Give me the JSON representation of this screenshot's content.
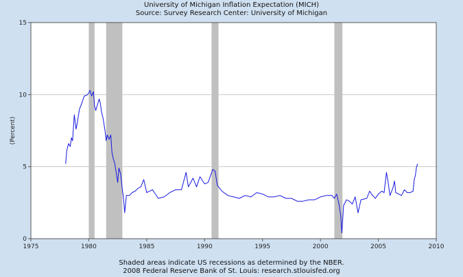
{
  "header": {
    "title": "University of Michigan Inflation Expectation (MICH)",
    "source": "Source: Survey Research Center: University of Michigan"
  },
  "footer": {
    "note": "Shaded areas indicate US recessions as determined by the NBER.",
    "credit": "2008 Federal Reserve Bank of St. Louis: research.stlouisfed.org"
  },
  "colors": {
    "line": "#1515e0",
    "recession": "#c0c0c0",
    "grid": "#c8c8c8",
    "plot_bg": "#ffffff",
    "page_bg": "#cfe0f1"
  },
  "chart_data": {
    "type": "line",
    "title": "University of Michigan Inflation Expectation (MICH)",
    "subtitle": "Source: Survey Research Center: University of Michigan",
    "xlabel": "",
    "ylabel": "(Percent)",
    "xlim": [
      1975,
      2010
    ],
    "ylim": [
      0,
      15
    ],
    "x_ticks": [
      1975,
      1980,
      1985,
      1990,
      1995,
      2000,
      2005,
      2010
    ],
    "y_ticks": [
      0,
      5,
      10,
      15
    ],
    "grid": "horizontal",
    "recessions": [
      [
        1980.0,
        1980.5
      ],
      [
        1981.5,
        1982.9
      ],
      [
        1990.6,
        1991.2
      ],
      [
        2001.2,
        2001.9
      ]
    ],
    "series": [
      {
        "points": [
          [
            1978.0,
            5.2
          ],
          [
            1978.1,
            6.1
          ],
          [
            1978.25,
            6.6
          ],
          [
            1978.4,
            6.4
          ],
          [
            1978.5,
            7.0
          ],
          [
            1978.6,
            6.8
          ],
          [
            1978.75,
            8.6
          ],
          [
            1978.9,
            7.6
          ],
          [
            1979.0,
            8.0
          ],
          [
            1979.2,
            9.0
          ],
          [
            1979.4,
            9.4
          ],
          [
            1979.6,
            9.9
          ],
          [
            1979.8,
            9.95
          ],
          [
            1980.0,
            10.1
          ],
          [
            1980.1,
            10.3
          ],
          [
            1980.25,
            9.9
          ],
          [
            1980.4,
            10.2
          ],
          [
            1980.5,
            9.2
          ],
          [
            1980.6,
            8.9
          ],
          [
            1980.75,
            9.3
          ],
          [
            1980.9,
            9.7
          ],
          [
            1981.0,
            9.4
          ],
          [
            1981.1,
            8.8
          ],
          [
            1981.25,
            8.3
          ],
          [
            1981.4,
            7.5
          ],
          [
            1981.5,
            6.8
          ],
          [
            1981.6,
            7.2
          ],
          [
            1981.75,
            6.9
          ],
          [
            1981.9,
            7.2
          ],
          [
            1982.0,
            6.0
          ],
          [
            1982.1,
            5.6
          ],
          [
            1982.25,
            5.2
          ],
          [
            1982.4,
            4.4
          ],
          [
            1982.5,
            3.9
          ],
          [
            1982.6,
            4.9
          ],
          [
            1982.75,
            4.5
          ],
          [
            1982.9,
            3.4
          ],
          [
            1983.0,
            2.8
          ],
          [
            1983.1,
            1.8
          ],
          [
            1983.25,
            3.0
          ],
          [
            1983.5,
            3.0
          ],
          [
            1983.75,
            3.2
          ],
          [
            1984.0,
            3.3
          ],
          [
            1984.25,
            3.5
          ],
          [
            1984.5,
            3.6
          ],
          [
            1984.75,
            4.1
          ],
          [
            1985.0,
            3.2
          ],
          [
            1985.5,
            3.4
          ],
          [
            1986.0,
            2.8
          ],
          [
            1986.5,
            2.9
          ],
          [
            1987.0,
            3.2
          ],
          [
            1987.5,
            3.4
          ],
          [
            1988.0,
            3.4
          ],
          [
            1988.4,
            4.6
          ],
          [
            1988.6,
            3.6
          ],
          [
            1989.0,
            4.2
          ],
          [
            1989.3,
            3.6
          ],
          [
            1989.6,
            4.3
          ],
          [
            1990.0,
            3.8
          ],
          [
            1990.3,
            3.9
          ],
          [
            1990.7,
            4.8
          ],
          [
            1990.9,
            4.7
          ],
          [
            1991.1,
            3.7
          ],
          [
            1991.5,
            3.3
          ],
          [
            1992.0,
            3.0
          ],
          [
            1992.5,
            2.9
          ],
          [
            1993.0,
            2.8
          ],
          [
            1993.5,
            3.0
          ],
          [
            1994.0,
            2.9
          ],
          [
            1994.5,
            3.2
          ],
          [
            1995.0,
            3.1
          ],
          [
            1995.5,
            2.9
          ],
          [
            1996.0,
            2.9
          ],
          [
            1996.5,
            3.0
          ],
          [
            1997.0,
            2.8
          ],
          [
            1997.5,
            2.8
          ],
          [
            1998.0,
            2.6
          ],
          [
            1998.5,
            2.6
          ],
          [
            1999.0,
            2.7
          ],
          [
            1999.5,
            2.7
          ],
          [
            2000.0,
            2.9
          ],
          [
            2000.5,
            3.0
          ],
          [
            2001.0,
            3.0
          ],
          [
            2001.2,
            2.8
          ],
          [
            2001.4,
            3.1
          ],
          [
            2001.6,
            2.4
          ],
          [
            2001.75,
            1.6
          ],
          [
            2001.85,
            0.4
          ],
          [
            2002.0,
            2.3
          ],
          [
            2002.25,
            2.7
          ],
          [
            2002.5,
            2.6
          ],
          [
            2002.75,
            2.4
          ],
          [
            2003.0,
            2.9
          ],
          [
            2003.25,
            1.8
          ],
          [
            2003.5,
            2.7
          ],
          [
            2004.0,
            2.8
          ],
          [
            2004.25,
            3.3
          ],
          [
            2004.5,
            3.0
          ],
          [
            2004.75,
            2.8
          ],
          [
            2005.0,
            3.1
          ],
          [
            2005.3,
            3.3
          ],
          [
            2005.5,
            3.2
          ],
          [
            2005.7,
            4.6
          ],
          [
            2005.85,
            3.9
          ],
          [
            2006.0,
            3.0
          ],
          [
            2006.25,
            3.5
          ],
          [
            2006.4,
            4.0
          ],
          [
            2006.5,
            3.2
          ],
          [
            2006.75,
            3.1
          ],
          [
            2007.0,
            3.0
          ],
          [
            2007.25,
            3.4
          ],
          [
            2007.5,
            3.2
          ],
          [
            2007.75,
            3.2
          ],
          [
            2008.0,
            3.3
          ],
          [
            2008.1,
            4.1
          ],
          [
            2008.2,
            4.4
          ],
          [
            2008.3,
            5.0
          ],
          [
            2008.4,
            5.2
          ]
        ]
      }
    ]
  }
}
